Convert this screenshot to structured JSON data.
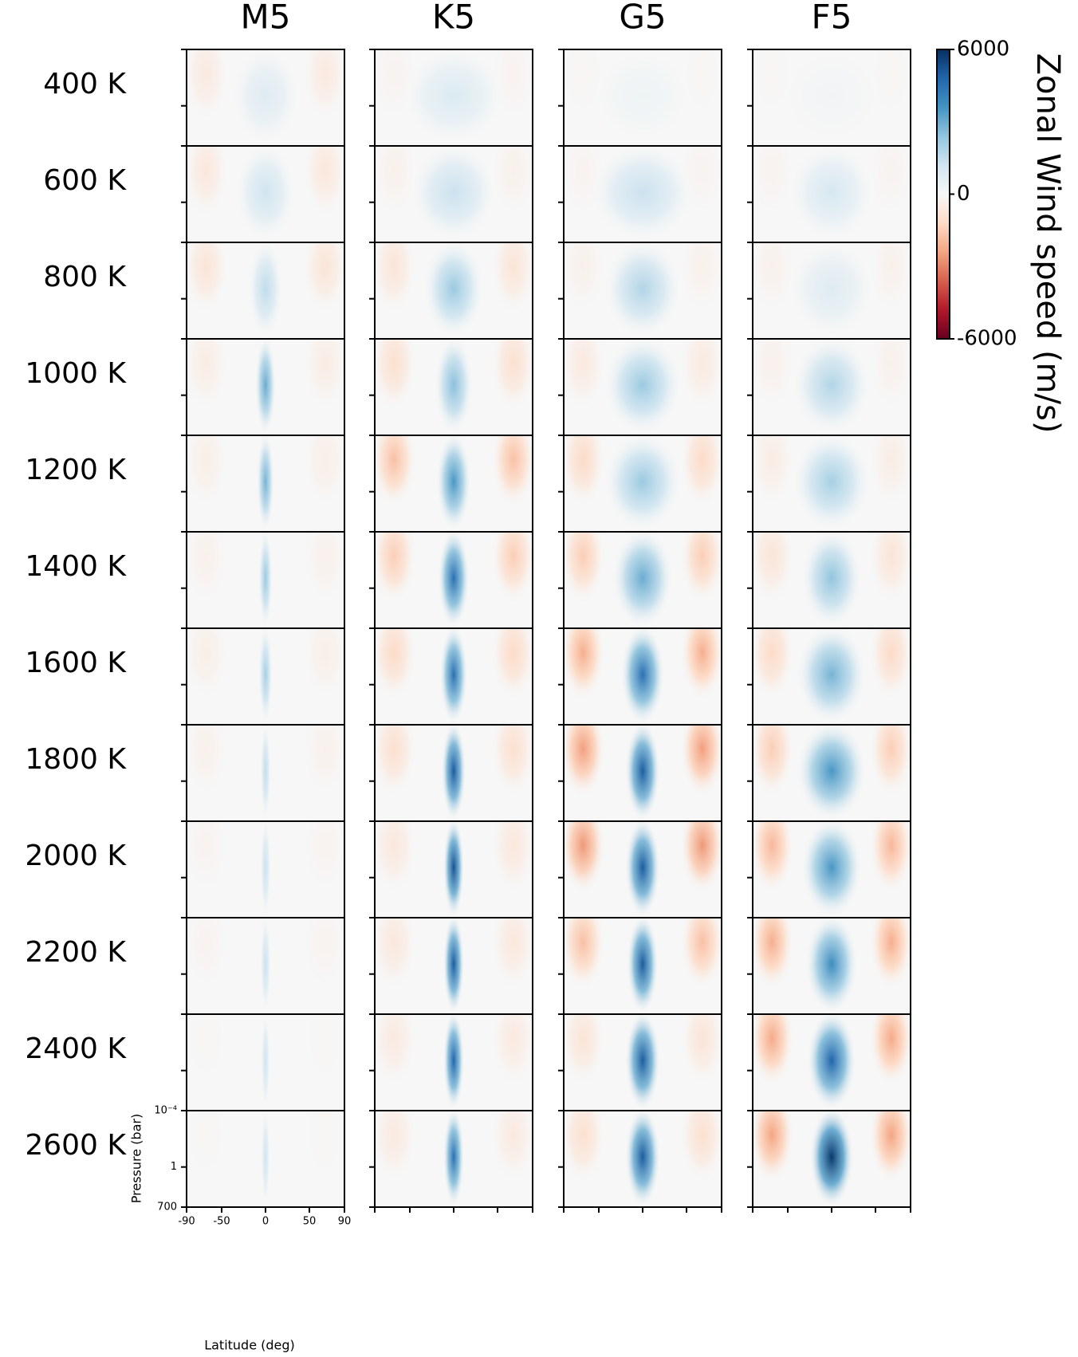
{
  "chart_data": {
    "type": "contour-grid",
    "rows": [
      "400 K",
      "600 K",
      "800 K",
      "1000 K",
      "1200 K",
      "1400 K",
      "1600 K",
      "1800 K",
      "2000 K",
      "2200 K",
      "2400 K",
      "2600 K"
    ],
    "xlabel": "Latitude (deg)",
    "ylabel": "Pressure (bar)",
    "xlim": [
      -90,
      90
    ],
    "xticks": [
      -90,
      -50,
      0,
      50,
      90
    ],
    "ylim": [
      0.0001,
      700
    ],
    "yscale": "log",
    "yticks": [
      {
        "value": 0.0001,
        "label": "10⁻⁴"
      },
      1,
      700
    ],
    "colorbar": {
      "label": "Zonal Wind speed (m/s)",
      "lim": [
        -6000,
        6000
      ],
      "ticks": [
        6000,
        0,
        -6000
      ],
      "colors": [
        "#67001f",
        "#b2182b",
        "#d6604d",
        "#f4a582",
        "#fddbc7",
        "#f7f7f7",
        "#d1e5f0",
        "#92c5de",
        "#4393c3",
        "#2166ac",
        "#053061"
      ]
    },
    "series": [
      {
        "name": "M5",
        "values": [
          800,
          1200,
          1500,
          3000,
          2800,
          2200,
          2000,
          1500,
          1300,
          1300,
          1200,
          1200
        ],
        "retrograde": [
          -600,
          -700,
          -800,
          -500,
          -400,
          -300,
          -400,
          -300,
          -200,
          -200,
          -100,
          -100
        ],
        "widths": [
          40,
          35,
          20,
          12,
          10,
          8,
          8,
          6,
          6,
          6,
          5,
          5
        ]
      },
      {
        "name": "K5",
        "values": [
          900,
          1300,
          2200,
          2500,
          3500,
          4500,
          4500,
          5000,
          5200,
          5000,
          4800,
          4500
        ],
        "retrograde": [
          -200,
          -300,
          -800,
          -1000,
          -1800,
          -1500,
          -1200,
          -1000,
          -700,
          -700,
          -600,
          -600
        ],
        "widths": [
          60,
          50,
          35,
          22,
          20,
          18,
          16,
          14,
          12,
          12,
          12,
          12
        ]
      },
      {
        "name": "G5",
        "values": [
          300,
          1300,
          1800,
          2200,
          2200,
          3000,
          4500,
          5000,
          5000,
          5000,
          5000,
          5000
        ],
        "retrograde": [
          -100,
          -200,
          -300,
          -600,
          -1200,
          -1500,
          -2200,
          -2500,
          -2600,
          -1800,
          -800,
          -1000
        ],
        "widths": [
          60,
          60,
          45,
          45,
          45,
          35,
          25,
          20,
          20,
          18,
          20,
          20
        ]
      },
      {
        "name": "F5",
        "values": [
          200,
          1000,
          800,
          1800,
          2000,
          2400,
          2800,
          3500,
          3500,
          3800,
          4800,
          5800
        ],
        "retrograde": [
          -100,
          -200,
          -300,
          -300,
          -500,
          -800,
          -1200,
          -1500,
          -2000,
          -2200,
          -2300,
          -2400
        ],
        "widths": [
          60,
          50,
          50,
          45,
          45,
          35,
          40,
          40,
          35,
          30,
          28,
          25
        ]
      }
    ]
  }
}
